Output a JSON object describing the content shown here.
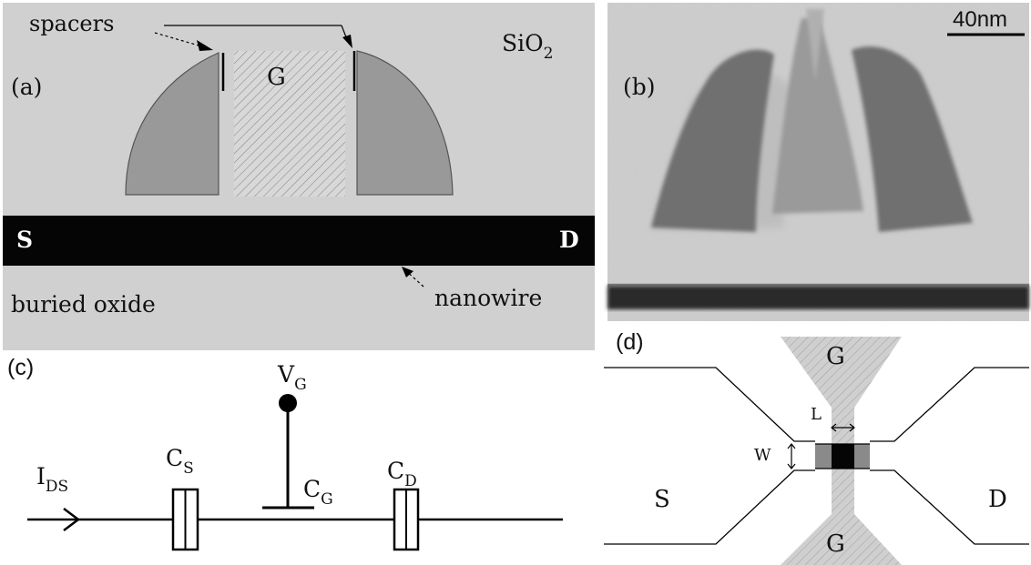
{
  "panel_a": {
    "label": "(a)",
    "spacers_label": "spacers",
    "gate_label": "G",
    "oxide_label_main": "SiO",
    "oxide_label_sub": "2",
    "source_label": "S",
    "drain_label": "D",
    "buried_oxide_label": "buried oxide",
    "nanowire_label": "nanowire"
  },
  "panel_b": {
    "label": "(b)",
    "scale_bar_label": "40nm"
  },
  "panel_c": {
    "label": "(c)",
    "vg_main": "V",
    "vg_sub": "G",
    "ids_main": "I",
    "ids_sub": "DS",
    "cs_main": "C",
    "cs_sub": "S",
    "cg_main": "C",
    "cg_sub": "G",
    "cd_main": "C",
    "cd_sub": "D"
  },
  "panel_d": {
    "label": "(d)",
    "gate_top_label": "G",
    "gate_bottom_label": "G",
    "length_label": "L",
    "width_label": "W",
    "source_label": "S",
    "drain_label": "D"
  }
}
